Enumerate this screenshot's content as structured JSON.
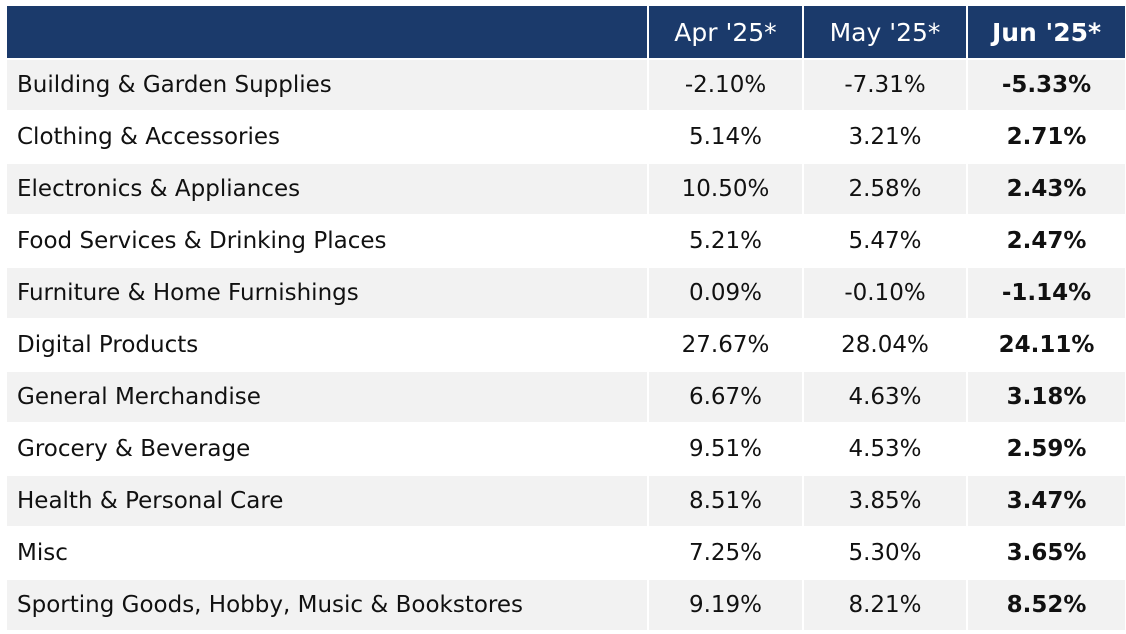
{
  "chart_data": {
    "type": "table",
    "columns": [
      "Apr '25*",
      "May '25*",
      "Jun '25*"
    ],
    "rows": [
      {
        "category": "Building & Garden Supplies",
        "values": [
          "-2.10%",
          "-7.31%",
          "-5.33%"
        ]
      },
      {
        "category": "Clothing & Accessories",
        "values": [
          "5.14%",
          "3.21%",
          "2.71%"
        ]
      },
      {
        "category": "Electronics & Appliances",
        "values": [
          "10.50%",
          "2.58%",
          "2.43%"
        ]
      },
      {
        "category": "Food Services & Drinking Places",
        "values": [
          "5.21%",
          "5.47%",
          "2.47%"
        ]
      },
      {
        "category": "Furniture & Home Furnishings",
        "values": [
          "0.09%",
          "-0.10%",
          "-1.14%"
        ]
      },
      {
        "category": "Digital Products",
        "values": [
          "27.67%",
          "28.04%",
          "24.11%"
        ]
      },
      {
        "category": "General Merchandise",
        "values": [
          "6.67%",
          "4.63%",
          "3.18%"
        ]
      },
      {
        "category": "Grocery & Beverage",
        "values": [
          "9.51%",
          "4.53%",
          "2.59%"
        ]
      },
      {
        "category": "Health & Personal Care",
        "values": [
          "8.51%",
          "3.85%",
          "3.47%"
        ]
      },
      {
        "category": "Misc",
        "values": [
          "7.25%",
          "5.30%",
          "3.65%"
        ]
      },
      {
        "category": "Sporting Goods, Hobby, Music & Bookstores",
        "values": [
          "9.19%",
          "8.21%",
          "8.52%"
        ]
      }
    ],
    "highlight_column": 2,
    "colors": {
      "header_bg": "#1b3a6b",
      "header_text": "#ffffff",
      "stripe": "#f2f2f2"
    }
  }
}
